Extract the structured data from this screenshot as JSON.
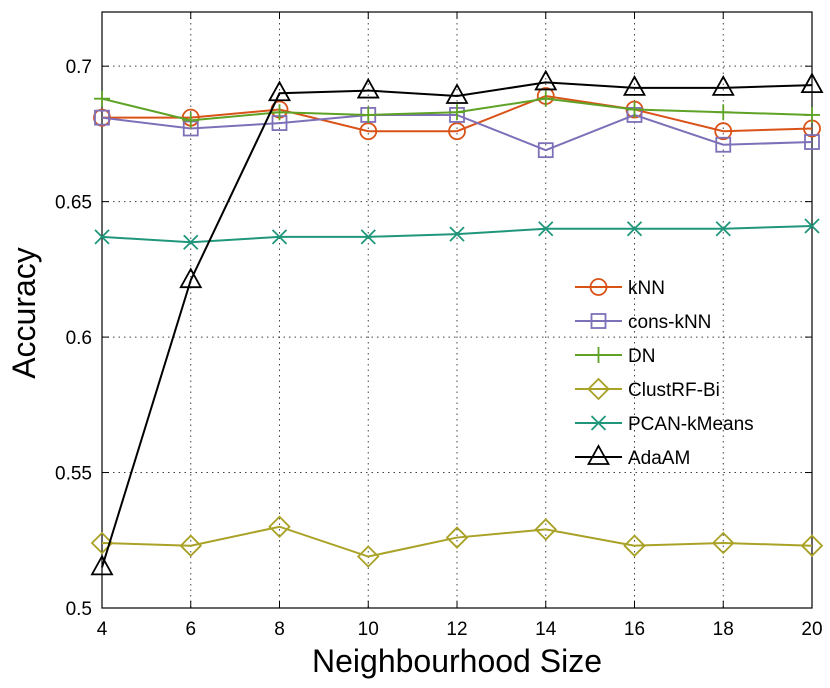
{
  "chart_data": {
    "type": "line",
    "title": "",
    "xlabel": "Neighbourhood Size",
    "ylabel": "Accuracy",
    "x": [
      4,
      6,
      8,
      10,
      12,
      14,
      16,
      18,
      20
    ],
    "xlim": [
      4,
      20
    ],
    "ylim": [
      0.5,
      0.72
    ],
    "xticks": [
      4,
      6,
      8,
      10,
      12,
      14,
      16,
      18,
      20
    ],
    "yticks": [
      0.5,
      0.55,
      0.6,
      0.65,
      0.7
    ],
    "xtick_labels": [
      "4",
      "6",
      "8",
      "10",
      "12",
      "14",
      "16",
      "18",
      "20"
    ],
    "ytick_labels": [
      "0.5",
      "0.55",
      "0.6",
      "0.65",
      "0.7"
    ],
    "grid": true,
    "legend_position": "right",
    "series": [
      {
        "name": "kNN",
        "color": "#d95319",
        "marker": "circle",
        "values": [
          0.681,
          0.681,
          0.684,
          0.676,
          0.676,
          0.689,
          0.684,
          0.676,
          0.677
        ]
      },
      {
        "name": "cons-kNN",
        "color": "#7e70b8",
        "marker": "square",
        "values": [
          0.681,
          0.677,
          0.679,
          0.682,
          0.682,
          0.669,
          0.682,
          0.671,
          0.672
        ]
      },
      {
        "name": "DN",
        "color": "#5ea226",
        "marker": "plus",
        "values": [
          0.688,
          0.68,
          0.683,
          0.682,
          0.683,
          0.688,
          0.684,
          0.683,
          0.682
        ]
      },
      {
        "name": "ClustRF-Bi",
        "color": "#a9a226",
        "marker": "diamond",
        "values": [
          0.524,
          0.523,
          0.53,
          0.519,
          0.526,
          0.529,
          0.523,
          0.524,
          0.523
        ]
      },
      {
        "name": "PCAN-kMeans",
        "color": "#20977b",
        "marker": "x",
        "values": [
          0.637,
          0.635,
          0.637,
          0.637,
          0.638,
          0.64,
          0.64,
          0.64,
          0.641
        ]
      },
      {
        "name": "AdaAM",
        "color": "#000000",
        "marker": "triangle",
        "values": [
          0.515,
          0.621,
          0.69,
          0.691,
          0.689,
          0.694,
          0.692,
          0.692,
          0.693
        ]
      }
    ]
  }
}
